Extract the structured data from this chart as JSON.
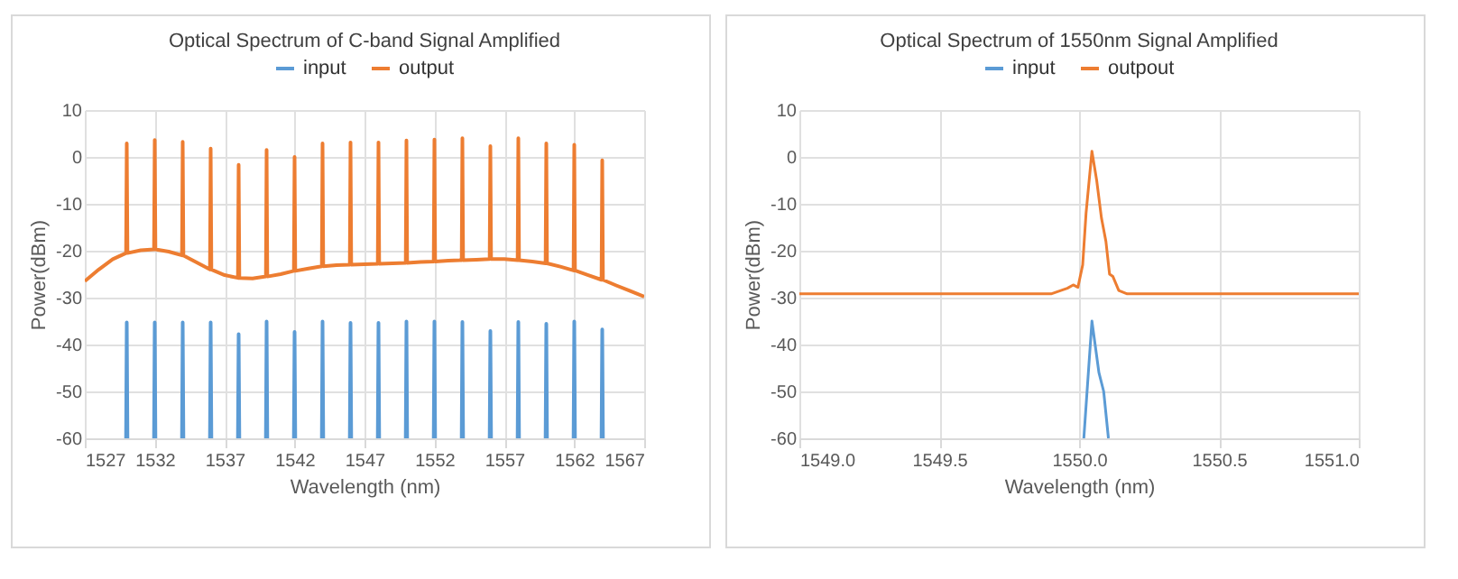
{
  "chart_data": [
    {
      "type": "line",
      "title": "Optical Spectrum of C-band Signal Amplified",
      "xlabel": "Wavelength (nm)",
      "ylabel": "Power(dBm)",
      "xlim": [
        1527,
        1567
      ],
      "xticks": [
        1527,
        1532,
        1537,
        1542,
        1547,
        1552,
        1557,
        1562,
        1567
      ],
      "ylim": [
        -60,
        10
      ],
      "yticks": [
        -60,
        -50,
        -40,
        -30,
        -20,
        -10,
        0,
        10
      ],
      "grid": true,
      "legend": "top",
      "series": [
        {
          "name": "input",
          "color": "#5b9bd5",
          "x": [
            1529.95,
            1530,
            1530.05,
            1531,
            1531.95,
            1532,
            1532.05,
            1533,
            1533.95,
            1534,
            1534.05,
            1535,
            1535.95,
            1536,
            1536.05,
            1537,
            1537.95,
            1538,
            1538.05,
            1539,
            1539.95,
            1540,
            1540.05,
            1541,
            1541.95,
            1542,
            1542.05,
            1543,
            1543.95,
            1544,
            1544.05,
            1545,
            1545.95,
            1546,
            1546.05,
            1547,
            1547.95,
            1548,
            1548.05,
            1549,
            1549.95,
            1550,
            1550.05,
            1551,
            1551.95,
            1552,
            1552.05,
            1553,
            1553.95,
            1554,
            1554.05,
            1555,
            1555.95,
            1556,
            1556.05,
            1557,
            1557.95,
            1558,
            1558.05,
            1559,
            1559.95,
            1560,
            1560.05,
            1561,
            1561.95,
            1562,
            1562.05,
            1563,
            1563.95,
            1564,
            1564.05
          ],
          "values": [
            -60,
            -35.3,
            -60,
            null,
            -60,
            -35.3,
            -60,
            null,
            -60,
            -35.3,
            -60,
            null,
            -60,
            -35.3,
            -60,
            null,
            -60,
            -37.8,
            -60,
            null,
            -60,
            -35.1,
            -60,
            null,
            -60,
            -37.3,
            -60,
            null,
            -60,
            -35.1,
            -60,
            null,
            -60,
            -35.4,
            -60,
            null,
            -60,
            -35.4,
            -60,
            null,
            -60,
            -35.1,
            -60,
            null,
            -60,
            -35.1,
            -60,
            null,
            -60,
            -35.2,
            -60,
            null,
            -60,
            -37.1,
            -60,
            null,
            -60,
            -35.2,
            -60,
            null,
            -60,
            -35.6,
            -60,
            null,
            -60,
            -35.1,
            -60,
            null,
            -60,
            -36.8,
            -60
          ]
        },
        {
          "name": "output",
          "color": "#ed7d31",
          "x": [
            1527,
            1528,
            1529,
            1529.95,
            1530,
            1530.05,
            1531,
            1531.95,
            1532,
            1532.05,
            1533,
            1533.95,
            1534,
            1534.05,
            1535,
            1535.95,
            1536,
            1536.05,
            1537,
            1537.95,
            1538,
            1538.05,
            1539,
            1539.95,
            1540,
            1540.05,
            1541,
            1541.95,
            1542,
            1542.05,
            1543,
            1543.95,
            1544,
            1544.05,
            1545,
            1545.95,
            1546,
            1546.05,
            1547,
            1547.95,
            1548,
            1548.05,
            1549,
            1549.95,
            1550,
            1550.05,
            1551,
            1551.95,
            1552,
            1552.05,
            1553,
            1553.95,
            1554,
            1554.05,
            1555,
            1555.95,
            1556,
            1556.05,
            1557,
            1557.95,
            1558,
            1558.05,
            1559,
            1559.95,
            1560,
            1560.05,
            1561,
            1561.95,
            1562,
            1562.05,
            1563,
            1563.95,
            1564,
            1564.05,
            1565,
            1566,
            1567
          ],
          "values": [
            -26.5,
            -24,
            -21.8,
            -20.5,
            2.9,
            -20.5,
            -19.9,
            -19.7,
            3.6,
            -19.7,
            -20.2,
            -21,
            3.2,
            -21,
            -22.5,
            -24,
            1.8,
            -24,
            -25.2,
            -25.8,
            -1.7,
            -25.8,
            -25.9,
            -25.5,
            1.5,
            -25.5,
            -25,
            -24.3,
            0,
            -24.3,
            -23.8,
            -23.3,
            2.9,
            -23.3,
            -23.1,
            -23,
            3.1,
            -23,
            -22.9,
            -22.8,
            3.1,
            -22.8,
            -22.7,
            -22.6,
            3.5,
            -22.6,
            -22.4,
            -22.3,
            3.7,
            -22.3,
            -22.1,
            -22,
            4,
            -22,
            -21.9,
            -21.8,
            2.3,
            -21.8,
            -21.8,
            -22,
            4,
            -22,
            -22.3,
            -22.7,
            2.9,
            -22.7,
            -23.4,
            -24.2,
            2.6,
            -24.2,
            -25.2,
            -26.2,
            -0.7,
            -26.2,
            -27.4,
            -28.6,
            -29.8
          ]
        }
      ]
    },
    {
      "type": "line",
      "title": "Optical Spectrum of 1550nm Signal Amplified",
      "xlabel": "Wavelength (nm)",
      "ylabel": "Power(dBm)",
      "xlim": [
        1549,
        1551
      ],
      "xticks": [
        {
          "value": 1549,
          "label": "1549.0"
        },
        {
          "value": 1549.5,
          "label": "1549.5"
        },
        {
          "value": 1550,
          "label": "1550.0"
        },
        {
          "value": 1550.5,
          "label": "1550.5"
        },
        {
          "value": 1551,
          "label": "1551.0"
        }
      ],
      "ylim": [
        -60,
        10
      ],
      "yticks": [
        -60,
        -50,
        -40,
        -30,
        -20,
        -10,
        0,
        10
      ],
      "grid": true,
      "legend": "top",
      "series": [
        {
          "name": "input",
          "color": "#5b9bd5",
          "x": [
            1550.017,
            1550.046,
            1550.071,
            1550.088,
            1550.105
          ],
          "values": [
            -60,
            -35,
            -46,
            -50,
            -60
          ]
        },
        {
          "name": "outpout",
          "color": "#ed7d31",
          "x": [
            1549,
            1549.9,
            1549.958,
            1549.979,
            1549.996,
            1550.013,
            1550.025,
            1550.046,
            1550.063,
            1550.08,
            1550.096,
            1550.109,
            1550.121,
            1550.142,
            1550.172,
            1551
          ],
          "values": [
            -29.2,
            -29.2,
            -28,
            -27.3,
            -27.8,
            -23,
            -12,
            1.2,
            -5,
            -13,
            -18,
            -25,
            -25.5,
            -28.5,
            -29.2,
            -29.2
          ]
        }
      ]
    }
  ]
}
